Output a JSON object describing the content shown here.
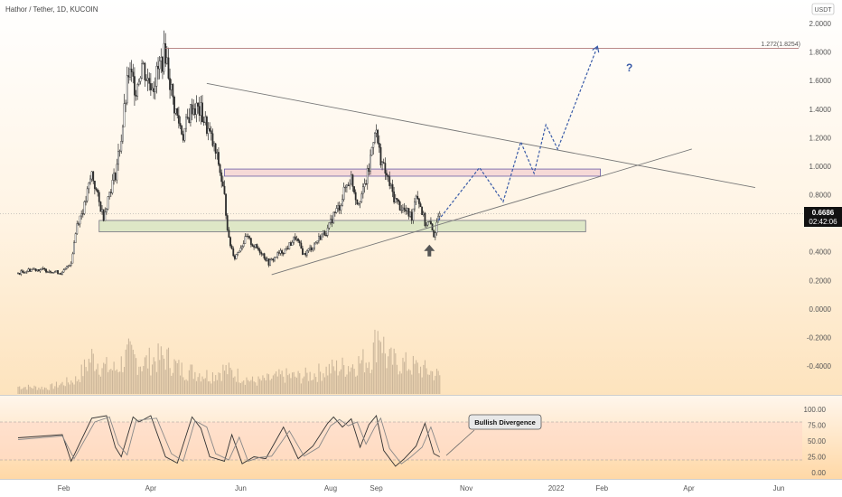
{
  "header": {
    "symbol": "Hathor / Tether, 1D, KUCOIN",
    "currency_button": "USDT"
  },
  "price_tag": {
    "price": "0.6686",
    "countdown": "02:42:06"
  },
  "annotations": {
    "fib_label": "1.272(1.8254)",
    "question_mark": "?",
    "callout": "Bullish Divergence"
  },
  "colors": {
    "up": "#2b2b2b",
    "down": "#2b2b2b",
    "projection": "#3a5ba8",
    "resistance_fill": "#f6d6d6",
    "support_fill": "#dbe6c4",
    "osc_band": "#ffd9c8"
  },
  "chart_data": [
    {
      "type": "candlestick",
      "title": "Hathor / Tether, 1D, KUCOIN",
      "y_ticks": [
        "2.0000",
        "1.8000",
        "1.6000",
        "1.4000",
        "1.2000",
        "1.0000",
        "0.8000",
        "0.6000",
        "0.4000",
        "0.2000",
        "0.0000",
        "-0.2000",
        "-0.4000"
      ],
      "ylim": [
        -0.6,
        2.05
      ],
      "x_ticks": [
        "Feb",
        "Apr",
        "Jun",
        "Aug",
        "Sep",
        "Nov",
        "2022",
        "Feb",
        "Apr",
        "Jun"
      ],
      "x_tick_days": [
        31,
        90,
        151,
        212,
        243,
        304,
        365,
        396,
        455,
        516
      ],
      "xlim": [
        0,
        527
      ],
      "last_price": 0.6686,
      "price_series": {
        "days": [
          0,
          10,
          20,
          30,
          36,
          40,
          45,
          50,
          55,
          58,
          62,
          66,
          70,
          75,
          80,
          84,
          88,
          92,
          96,
          100,
          105,
          108,
          112,
          118,
          124,
          130,
          136,
          140,
          143,
          147,
          150,
          155,
          160,
          165,
          170,
          176,
          182,
          188,
          194,
          200,
          206,
          210,
          214,
          218,
          222,
          226,
          230,
          234,
          238,
          242,
          245,
          248,
          251,
          255,
          259,
          263,
          267,
          270,
          273,
          276,
          279,
          282,
          284,
          286
        ],
        "close": [
          0.25,
          0.28,
          0.27,
          0.25,
          0.33,
          0.6,
          0.72,
          0.95,
          0.74,
          0.65,
          0.82,
          0.95,
          1.2,
          1.65,
          1.55,
          1.72,
          1.6,
          1.58,
          1.7,
          1.8,
          1.46,
          1.34,
          1.22,
          1.42,
          1.38,
          1.22,
          1.02,
          0.78,
          0.48,
          0.36,
          0.42,
          0.5,
          0.44,
          0.4,
          0.32,
          0.38,
          0.42,
          0.5,
          0.38,
          0.44,
          0.52,
          0.55,
          0.66,
          0.72,
          0.85,
          0.92,
          0.75,
          0.82,
          0.98,
          1.28,
          1.1,
          0.98,
          0.9,
          0.78,
          0.72,
          0.68,
          0.65,
          0.82,
          0.72,
          0.6,
          0.6,
          0.52,
          0.58,
          0.6686
        ]
      },
      "volume_series": {
        "days": [
          0,
          20,
          40,
          50,
          58,
          66,
          75,
          84,
          92,
          100,
          110,
          120,
          130,
          140,
          150,
          160,
          170,
          180,
          190,
          200,
          210,
          220,
          230,
          240,
          245,
          250,
          260,
          270,
          280,
          286
        ],
        "volume": [
          0.06,
          0.05,
          0.12,
          0.3,
          0.22,
          0.2,
          0.32,
          0.25,
          0.28,
          0.3,
          0.2,
          0.18,
          0.15,
          0.2,
          0.15,
          0.1,
          0.12,
          0.15,
          0.14,
          0.16,
          0.2,
          0.22,
          0.25,
          0.3,
          0.55,
          0.28,
          0.25,
          0.22,
          0.18,
          0.15
        ]
      },
      "zones": [
        {
          "name": "resistance",
          "y1": 0.93,
          "y2": 0.98,
          "x1": 140,
          "x2": 395
        },
        {
          "name": "support",
          "y1": 0.54,
          "y2": 0.62,
          "x1": 55,
          "x2": 385
        }
      ],
      "fib_level": {
        "label": "1.272(1.8254)",
        "value": 1.8254
      },
      "trendlines": [
        {
          "name": "descending",
          "x1": 128,
          "y1": 1.58,
          "x2": 500,
          "y2": 0.85
        },
        {
          "name": "ascending",
          "x1": 172,
          "y1": 0.24,
          "x2": 457,
          "y2": 1.12
        }
      ],
      "projection": {
        "days": [
          285,
          313,
          329,
          341,
          350,
          358,
          366,
          393
        ],
        "values": [
          0.62,
          0.99,
          0.75,
          1.17,
          0.95,
          1.29,
          1.12,
          1.84
        ]
      },
      "arrow_marker": {
        "day": 279,
        "value": 0.45
      }
    },
    {
      "type": "line",
      "title": "",
      "y_ticks": [
        "100.00",
        "75.00",
        "50.00",
        "25.00",
        "0.00"
      ],
      "ylim": [
        0,
        100
      ],
      "levels": [
        80,
        20
      ],
      "series": [
        {
          "days": [
            0,
            30,
            36,
            50,
            60,
            66,
            70,
            78,
            82,
            90,
            100,
            108,
            118,
            124,
            130,
            140,
            145,
            152,
            160,
            168,
            180,
            190,
            200,
            210,
            214,
            220,
            226,
            232,
            238,
            243,
            248,
            256,
            262,
            270,
            276,
            282,
            286
          ],
          "values": [
            55,
            60,
            18,
            86,
            90,
            40,
            25,
            88,
            80,
            90,
            25,
            15,
            88,
            70,
            25,
            18,
            60,
            14,
            25,
            22,
            72,
            22,
            42,
            78,
            88,
            72,
            85,
            40,
            76,
            90,
            35,
            10,
            22,
            42,
            78,
            30,
            25
          ]
        },
        {
          "days": [
            0,
            30,
            38,
            52,
            62,
            68,
            74,
            80,
            86,
            94,
            104,
            112,
            120,
            128,
            134,
            143,
            150,
            156,
            164,
            172,
            184,
            194,
            204,
            212,
            218,
            224,
            230,
            236,
            242,
            246,
            252,
            260,
            266,
            274,
            280,
            286
          ],
          "values": [
            52,
            58,
            22,
            80,
            88,
            45,
            28,
            82,
            84,
            86,
            30,
            18,
            82,
            72,
            30,
            20,
            56,
            18,
            24,
            26,
            66,
            26,
            40,
            74,
            84,
            74,
            80,
            45,
            72,
            86,
            38,
            14,
            24,
            40,
            72,
            32
          ]
        }
      ]
    }
  ]
}
